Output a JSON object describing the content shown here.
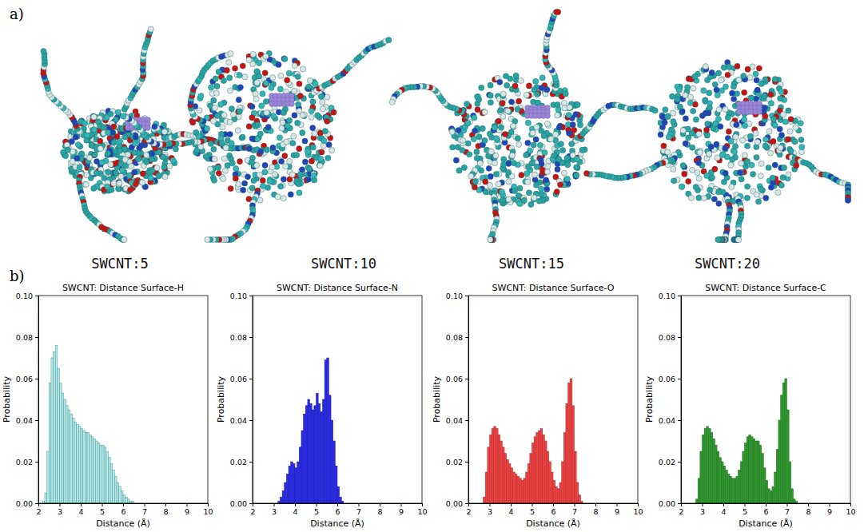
{
  "panel_labels": [
    "a)",
    "b)"
  ],
  "structure_captions": [
    "SWCNT:5",
    "SWCNT:10",
    "SWCNT:15",
    "SWCNT:20"
  ],
  "chart_data": [
    {
      "type": "histogram",
      "title": "SWCNT: Distance Surface-H",
      "x_label": "Distance (Å)",
      "y_label": "Probability",
      "color": "#b3e6e6",
      "xlim": [
        2,
        10
      ],
      "xticks": [
        2,
        3,
        4,
        5,
        6,
        7,
        8,
        9,
        10
      ],
      "ylim": [
        0,
        0.1
      ],
      "yticks": [
        {
          "value": 0,
          "label": "0.00"
        },
        0.02,
        0.04,
        0.06,
        0.08,
        {
          "value": 0.1,
          "label": "0.10"
        }
      ],
      "bins": [
        2,
        2.1,
        2.2,
        2.3,
        2.4,
        2.5,
        2.6,
        2.7,
        2.8,
        2.9,
        3,
        3.1,
        3.2,
        3.3,
        3.4,
        3.5,
        3.6,
        3.7,
        3.8,
        3.9,
        4,
        4.1,
        4.2,
        4.3,
        4.4,
        4.5,
        4.6,
        4.7,
        4.8,
        4.9,
        5,
        5.1,
        5.2,
        5.3,
        5.4,
        5.5,
        5.6,
        5.7,
        5.8,
        5.9,
        6,
        6.1,
        6.2,
        6.3,
        6.4,
        6.5,
        6.6,
        6.7,
        6.8,
        6.9,
        7,
        7.1,
        7.2,
        7.3,
        7.4,
        7.5,
        7.6,
        7.7,
        7.8,
        7.9,
        8
      ],
      "values": [
        0,
        0,
        0.001,
        0.005,
        0.025,
        0.058,
        0.07,
        0.073,
        0.076,
        0.065,
        0.058,
        0.053,
        0.05,
        0.047,
        0.045,
        0.043,
        0.041,
        0.039,
        0.038,
        0.037,
        0.036,
        0.035,
        0.034,
        0.034,
        0.033,
        0.032,
        0.031,
        0.03,
        0.029,
        0.028,
        0.028,
        0.027,
        0.025,
        0.022,
        0.019,
        0.016,
        0.013,
        0.01,
        0.008,
        0.006,
        0.004,
        0.003,
        0.002,
        0.001,
        0.001,
        0,
        0,
        0,
        0,
        0,
        0,
        0,
        0,
        0,
        0,
        0,
        0,
        0,
        0,
        0
      ]
    },
    {
      "type": "histogram",
      "title": "SWCNT: Distance Surface-N",
      "x_label": "Distance (Å)",
      "y_label": "Probability",
      "color": "#2a2ae8",
      "xlim": [
        2,
        10
      ],
      "xticks": [
        2,
        3,
        4,
        5,
        6,
        7,
        8,
        9,
        10
      ],
      "ylim": [
        0,
        0.1
      ],
      "yticks": [
        {
          "value": 0,
          "label": "0.00"
        },
        0.02,
        0.04,
        0.06,
        0.08,
        {
          "value": 0.1,
          "label": "0.10"
        }
      ],
      "bins": [
        2,
        2.1,
        2.2,
        2.3,
        2.4,
        2.5,
        2.6,
        2.7,
        2.8,
        2.9,
        3,
        3.1,
        3.2,
        3.3,
        3.4,
        3.5,
        3.6,
        3.7,
        3.8,
        3.9,
        4,
        4.1,
        4.2,
        4.3,
        4.4,
        4.5,
        4.6,
        4.7,
        4.8,
        4.9,
        5,
        5.1,
        5.2,
        5.3,
        5.4,
        5.5,
        5.6,
        5.7,
        5.8,
        5.9,
        6,
        6.1,
        6.2,
        6.3,
        6.4,
        6.5,
        6.6,
        6.7,
        6.8,
        6.9,
        7,
        7.1,
        7.2,
        7.3,
        7.4,
        7.5,
        7.6,
        7.7,
        7.8,
        7.9,
        8
      ],
      "values": [
        0,
        0,
        0,
        0,
        0,
        0,
        0,
        0,
        0,
        0,
        0,
        0,
        0.001,
        0.003,
        0.006,
        0.01,
        0.014,
        0.018,
        0.02,
        0.019,
        0.017,
        0.02,
        0.027,
        0.035,
        0.043,
        0.047,
        0.05,
        0.048,
        0.045,
        0.047,
        0.053,
        0.048,
        0.044,
        0.05,
        0.069,
        0.07,
        0.052,
        0.04,
        0.03,
        0.018,
        0.008,
        0.003,
        0.001,
        0,
        0,
        0,
        0,
        0,
        0,
        0,
        0,
        0,
        0,
        0,
        0,
        0,
        0,
        0,
        0,
        0
      ]
    },
    {
      "type": "histogram",
      "title": "SWCNT: Distance Surface-O",
      "x_label": "Distance (Å)",
      "y_label": "Probability",
      "color": "#f04040",
      "xlim": [
        2,
        10
      ],
      "xticks": [
        2,
        3,
        4,
        5,
        6,
        7,
        8,
        9,
        10
      ],
      "ylim": [
        0,
        0.1
      ],
      "yticks": [
        {
          "value": 0,
          "label": "0.00"
        },
        0.02,
        0.04,
        0.06,
        0.08,
        {
          "value": 0.1,
          "label": "0.10"
        }
      ],
      "bins": [
        2,
        2.1,
        2.2,
        2.3,
        2.4,
        2.5,
        2.6,
        2.7,
        2.8,
        2.9,
        3,
        3.1,
        3.2,
        3.3,
        3.4,
        3.5,
        3.6,
        3.7,
        3.8,
        3.9,
        4,
        4.1,
        4.2,
        4.3,
        4.4,
        4.5,
        4.6,
        4.7,
        4.8,
        4.9,
        5,
        5.1,
        5.2,
        5.3,
        5.4,
        5.5,
        5.6,
        5.7,
        5.8,
        5.9,
        6,
        6.1,
        6.2,
        6.3,
        6.4,
        6.5,
        6.6,
        6.7,
        6.8,
        6.9,
        7,
        7.1,
        7.2,
        7.3,
        7.4,
        7.5,
        7.6,
        7.7,
        7.8,
        7.9,
        8
      ],
      "values": [
        0,
        0,
        0,
        0,
        0,
        0,
        0,
        0.003,
        0.015,
        0.027,
        0.033,
        0.036,
        0.037,
        0.036,
        0.033,
        0.03,
        0.027,
        0.024,
        0.021,
        0.019,
        0.017,
        0.015,
        0.014,
        0.013,
        0.012,
        0.011,
        0.012,
        0.015,
        0.019,
        0.024,
        0.029,
        0.032,
        0.034,
        0.035,
        0.036,
        0.033,
        0.03,
        0.025,
        0.02,
        0.015,
        0.011,
        0.008,
        0.007,
        0.01,
        0.02,
        0.034,
        0.048,
        0.058,
        0.06,
        0.047,
        0.025,
        0.01,
        0.004,
        0.001,
        0,
        0,
        0,
        0,
        0,
        0
      ]
    },
    {
      "type": "histogram",
      "title": "SWCNT: Distance Surface-C",
      "x_label": "Distance (Å)",
      "y_label": "Probability",
      "color": "#2e9a2e",
      "xlim": [
        2,
        10
      ],
      "xticks": [
        2,
        3,
        4,
        5,
        6,
        7,
        8,
        9,
        10
      ],
      "ylim": [
        0,
        0.1
      ],
      "yticks": [
        {
          "value": 0,
          "label": "0.00"
        },
        0.02,
        0.04,
        0.06,
        0.08,
        {
          "value": 0.1,
          "label": "0.10"
        }
      ],
      "bins": [
        2,
        2.1,
        2.2,
        2.3,
        2.4,
        2.5,
        2.6,
        2.7,
        2.8,
        2.9,
        3,
        3.1,
        3.2,
        3.3,
        3.4,
        3.5,
        3.6,
        3.7,
        3.8,
        3.9,
        4,
        4.1,
        4.2,
        4.3,
        4.4,
        4.5,
        4.6,
        4.7,
        4.8,
        4.9,
        5,
        5.1,
        5.2,
        5.3,
        5.4,
        5.5,
        5.6,
        5.7,
        5.8,
        5.9,
        6,
        6.1,
        6.2,
        6.3,
        6.4,
        6.5,
        6.6,
        6.7,
        6.8,
        6.9,
        7,
        7.1,
        7.2,
        7.3,
        7.4,
        7.5,
        7.6,
        7.7,
        7.8,
        7.9,
        8
      ],
      "values": [
        0,
        0,
        0,
        0,
        0,
        0,
        0,
        0.002,
        0.012,
        0.025,
        0.033,
        0.036,
        0.037,
        0.036,
        0.034,
        0.031,
        0.028,
        0.025,
        0.022,
        0.02,
        0.018,
        0.016,
        0.014,
        0.013,
        0.012,
        0.012,
        0.013,
        0.016,
        0.02,
        0.025,
        0.029,
        0.032,
        0.033,
        0.032,
        0.031,
        0.03,
        0.03,
        0.028,
        0.024,
        0.017,
        0.011,
        0.007,
        0.006,
        0.008,
        0.015,
        0.026,
        0.04,
        0.052,
        0.058,
        0.06,
        0.045,
        0.02,
        0.007,
        0.002,
        0.001,
        0,
        0,
        0,
        0,
        0
      ]
    }
  ]
}
